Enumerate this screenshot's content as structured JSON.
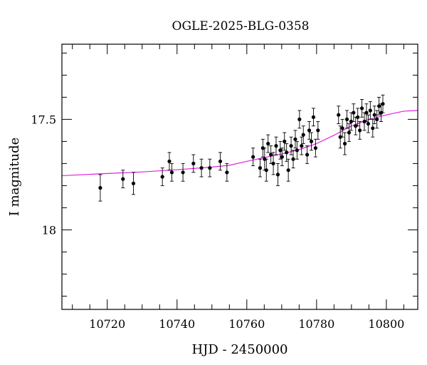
{
  "chart_data": {
    "type": "scatter",
    "title": "OGLE-2025-BLG-0358",
    "xlabel": "HJD - 2450000",
    "ylabel": "I magnitude",
    "xlim": [
      10707,
      10809
    ],
    "ylim": [
      18.36,
      17.16
    ],
    "y_inverted": true,
    "grid": false,
    "x_major_ticks": [
      10720,
      10740,
      10760,
      10780,
      10800
    ],
    "x_minor_step": 5,
    "y_major_ticks": [
      17.5,
      18
    ],
    "y_minor_step": 0.1,
    "x_tick_labels": [
      "10720",
      "10740",
      "10760",
      "10780",
      "10800"
    ],
    "y_tick_labels": [
      "17.5",
      "18"
    ],
    "colors": {
      "points": "#000000",
      "model": "#e020e0",
      "frame": "#000000"
    },
    "series": [
      {
        "kind": "points",
        "x": [
          10718,
          10724.5,
          10727.5,
          10735.8,
          10737.8,
          10738.5,
          10741.7,
          10744.7,
          10747,
          10749.4,
          10752.4,
          10754.3,
          10761.8,
          10763.8,
          10764.6,
          10765.1,
          10765.6,
          10766.1,
          10766.9,
          10767.6,
          10768.4,
          10768.9,
          10769.6,
          10770.1,
          10770.8,
          10771.4,
          10771.9,
          10772.7,
          10773.3,
          10773.9,
          10774.4,
          10775.1,
          10775.7,
          10776.2,
          10777.3,
          10777.9,
          10778.5,
          10779.1,
          10779.7,
          10780.4,
          10786.3,
          10786.8,
          10787.4,
          10788.1,
          10788.7,
          10789.3,
          10789.9,
          10790.6,
          10791.2,
          10791.8,
          10792.4,
          10793,
          10793.7,
          10794.3,
          10794.8,
          10795.4,
          10796.1,
          10796.6,
          10797.3,
          10797.9,
          10798.5,
          10799
        ],
        "y": [
          17.81,
          17.77,
          17.79,
          17.76,
          17.69,
          17.74,
          17.74,
          17.7,
          17.72,
          17.72,
          17.69,
          17.74,
          17.67,
          17.72,
          17.63,
          17.68,
          17.73,
          17.61,
          17.66,
          17.7,
          17.62,
          17.75,
          17.64,
          17.67,
          17.6,
          17.65,
          17.73,
          17.62,
          17.68,
          17.59,
          17.64,
          17.5,
          17.62,
          17.57,
          17.66,
          17.55,
          17.6,
          17.49,
          17.63,
          17.55,
          17.48,
          17.58,
          17.54,
          17.61,
          17.5,
          17.56,
          17.51,
          17.47,
          17.53,
          17.49,
          17.55,
          17.45,
          17.51,
          17.47,
          17.52,
          17.46,
          17.54,
          17.48,
          17.5,
          17.44,
          17.47,
          17.43
        ],
        "yerr": [
          0.06,
          0.04,
          0.05,
          0.04,
          0.04,
          0.04,
          0.04,
          0.04,
          0.04,
          0.04,
          0.04,
          0.04,
          0.04,
          0.04,
          0.04,
          0.05,
          0.05,
          0.04,
          0.04,
          0.05,
          0.04,
          0.05,
          0.04,
          0.04,
          0.04,
          0.04,
          0.05,
          0.04,
          0.04,
          0.04,
          0.04,
          0.04,
          0.04,
          0.04,
          0.04,
          0.04,
          0.04,
          0.04,
          0.04,
          0.04,
          0.04,
          0.05,
          0.04,
          0.05,
          0.04,
          0.04,
          0.04,
          0.04,
          0.04,
          0.04,
          0.04,
          0.04,
          0.04,
          0.04,
          0.04,
          0.04,
          0.04,
          0.04,
          0.04,
          0.04,
          0.04,
          0.04
        ]
      },
      {
        "kind": "model",
        "x": [
          10707,
          10720,
          10730,
          10740,
          10750,
          10755,
          10760,
          10765,
          10770,
          10775,
          10780,
          10785,
          10790,
          10795,
          10800,
          10805,
          10809
        ],
        "y": [
          17.755,
          17.745,
          17.738,
          17.728,
          17.716,
          17.708,
          17.69,
          17.673,
          17.657,
          17.637,
          17.61,
          17.572,
          17.53,
          17.5,
          17.48,
          17.463,
          17.46
        ]
      }
    ]
  }
}
